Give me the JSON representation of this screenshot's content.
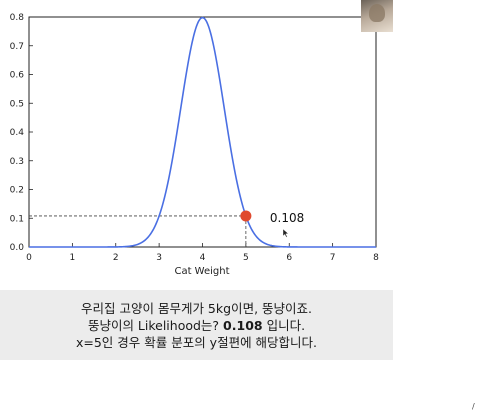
{
  "chart_data": {
    "type": "line",
    "xlabel": "Cat Weight",
    "ylabel": "",
    "title": "",
    "xlim": [
      0,
      8
    ],
    "ylim": [
      0,
      0.8
    ],
    "xticks": [
      "0",
      "1",
      "2",
      "3",
      "4",
      "5",
      "6",
      "7",
      "8"
    ],
    "yticks": [
      "0.0",
      "0.1",
      "0.2",
      "0.3",
      "0.4",
      "0.5",
      "0.6",
      "0.7",
      "0.8"
    ],
    "series": [
      {
        "distribution": "normal",
        "mean": 4,
        "sd": 0.5,
        "x": [
          0,
          0.5,
          1,
          1.5,
          2,
          2.25,
          2.5,
          2.75,
          3,
          3.25,
          3.5,
          3.75,
          4,
          4.25,
          4.5,
          4.75,
          5,
          5.25,
          5.5,
          5.75,
          6,
          6.5,
          7,
          7.5,
          8
        ],
        "y": [
          0,
          0,
          0,
          0,
          0.0003,
          0.0018,
          0.0089,
          0.035,
          0.108,
          0.259,
          0.4839,
          0.7041,
          0.7979,
          0.7041,
          0.4839,
          0.259,
          0.108,
          0.035,
          0.0089,
          0.0018,
          0.0003,
          0,
          0,
          0,
          0
        ],
        "color": "#4a6fe3"
      }
    ],
    "highlight_point": {
      "x": 5,
      "y": 0.108,
      "label": "0.108",
      "color": "#e04a2f"
    },
    "grid": false
  },
  "caption": {
    "line1": "우리집 고양이 몸무게가 5kg이면, 뚱냥이죠.",
    "line2_pre": "뚱냥이의 Likelihood는? ",
    "line2_bold": "0.108",
    "line2_post": " 입니다.",
    "line3": "x=5인 경우 확률 분포의 y절편에 해당합니다."
  },
  "colors": {
    "curve": "#4a6fe3",
    "marker": "#e04a2f",
    "caption_bg": "#ececec"
  },
  "icons": {
    "thumbnail": "cat-photo-thumbnail",
    "cursor": "mouse-cursor-icon"
  }
}
